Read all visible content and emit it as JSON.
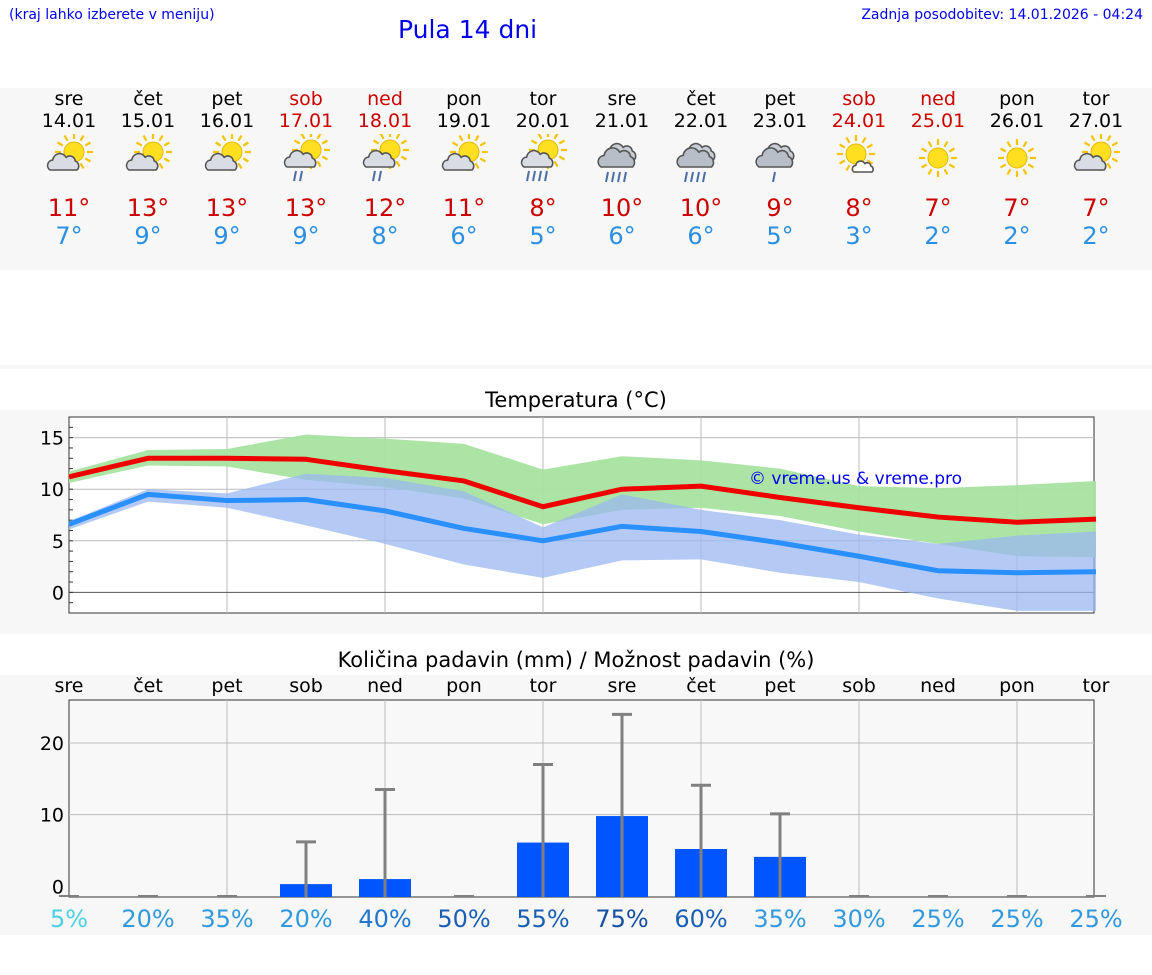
{
  "header": {
    "hint": "(kraj lahko izberete v meniju)",
    "title": "Pula 14 dni",
    "updated_label": "Zadnja posodobitev:",
    "updated_value": "14.01.2026 - 04:24"
  },
  "days": [
    {
      "name": "sre",
      "date": "14.01",
      "weekend": false,
      "icon": "partly-cloudy-icon",
      "tmax": "11°",
      "tmin": "7°"
    },
    {
      "name": "čet",
      "date": "15.01",
      "weekend": false,
      "icon": "partly-cloudy-icon",
      "tmax": "13°",
      "tmin": "9°"
    },
    {
      "name": "pet",
      "date": "16.01",
      "weekend": false,
      "icon": "partly-cloudy-icon",
      "tmax": "13°",
      "tmin": "9°"
    },
    {
      "name": "sob",
      "date": "17.01",
      "weekend": true,
      "icon": "partly-cloudy-light-rain-icon",
      "tmax": "13°",
      "tmin": "9°"
    },
    {
      "name": "ned",
      "date": "18.01",
      "weekend": true,
      "icon": "partly-cloudy-light-rain-icon",
      "tmax": "12°",
      "tmin": "8°"
    },
    {
      "name": "pon",
      "date": "19.01",
      "weekend": false,
      "icon": "partly-cloudy-icon",
      "tmax": "11°",
      "tmin": "6°"
    },
    {
      "name": "tor",
      "date": "20.01",
      "weekend": false,
      "icon": "partly-cloudy-rain-icon",
      "tmax": "8°",
      "tmin": "5°"
    },
    {
      "name": "sre",
      "date": "21.01",
      "weekend": false,
      "icon": "cloudy-rain-icon",
      "tmax": "10°",
      "tmin": "6°"
    },
    {
      "name": "čet",
      "date": "22.01",
      "weekend": false,
      "icon": "cloudy-rain-icon",
      "tmax": "10°",
      "tmin": "6°"
    },
    {
      "name": "pet",
      "date": "23.01",
      "weekend": false,
      "icon": "cloudy-light-rain-icon",
      "tmax": "9°",
      "tmin": "5°"
    },
    {
      "name": "sob",
      "date": "24.01",
      "weekend": true,
      "icon": "sun-small-cloud-icon",
      "tmax": "8°",
      "tmin": "3°"
    },
    {
      "name": "ned",
      "date": "25.01",
      "weekend": true,
      "icon": "sun-icon",
      "tmax": "7°",
      "tmin": "2°"
    },
    {
      "name": "pon",
      "date": "26.01",
      "weekend": false,
      "icon": "sun-icon",
      "tmax": "7°",
      "tmin": "2°"
    },
    {
      "name": "tor",
      "date": "27.01",
      "weekend": false,
      "icon": "partly-cloudy-icon",
      "tmax": "7°",
      "tmin": "2°"
    }
  ],
  "chart_data": [
    {
      "type": "line",
      "title": "Temperatura (°C)",
      "watermark": "© vreme.us & vreme.pro",
      "categories": [
        "14.01",
        "15.01",
        "16.01",
        "17.01",
        "18.01",
        "19.01",
        "20.01",
        "21.01",
        "22.01",
        "23.01",
        "24.01",
        "25.01",
        "26.01",
        "27.01"
      ],
      "ylim": [
        -2,
        17
      ],
      "yticks": [
        0,
        5,
        10,
        15
      ],
      "series": [
        {
          "name": "max",
          "color": "#ee0000",
          "values": [
            11.2,
            13.0,
            13.0,
            12.9,
            11.8,
            10.8,
            8.3,
            10.0,
            10.3,
            9.2,
            8.2,
            7.3,
            6.8,
            7.1
          ]
        },
        {
          "name": "min",
          "color": "#2a8fff",
          "values": [
            6.6,
            9.5,
            8.9,
            9.0,
            7.9,
            6.2,
            5.0,
            6.4,
            5.9,
            4.8,
            3.5,
            2.1,
            1.9,
            2.0
          ]
        }
      ],
      "max_band": {
        "color": "#a6e3a0",
        "upper": [
          11.7,
          13.8,
          13.9,
          15.3,
          14.9,
          14.4,
          11.9,
          13.2,
          12.8,
          12.0,
          10.3,
          10.1,
          10.4,
          10.8
        ],
        "lower": [
          10.6,
          12.3,
          12.2,
          10.9,
          10.2,
          9.1,
          6.6,
          8.0,
          8.2,
          7.4,
          5.9,
          4.7,
          3.5,
          3.4
        ]
      },
      "min_band": {
        "color": "#9bb8f0",
        "upper": [
          6.9,
          10.0,
          9.6,
          11.5,
          11.1,
          9.8,
          6.3,
          9.5,
          8.0,
          7.0,
          5.6,
          4.7,
          5.5,
          5.9
        ],
        "lower": [
          6.1,
          8.8,
          8.2,
          6.5,
          4.7,
          2.7,
          1.4,
          3.1,
          3.2,
          1.9,
          1.0,
          -0.6,
          -1.8,
          -1.8
        ]
      }
    },
    {
      "type": "bar",
      "title": "Količina padavin (mm) / Možnost padavin (%)",
      "categories": [
        "sre",
        "čet",
        "pet",
        "sob",
        "ned",
        "pon",
        "tor",
        "sre",
        "čet",
        "pet",
        "sob",
        "ned",
        "pon",
        "tor"
      ],
      "ylim": [
        -1.5,
        26
      ],
      "yticks": [
        0,
        10,
        20
      ],
      "values": [
        0,
        0,
        0,
        0.3,
        1.0,
        0,
        6.1,
        9.8,
        5.2,
        4.1,
        0,
        0,
        0,
        0
      ],
      "error_max": [
        0,
        0,
        0,
        6.2,
        13.5,
        0,
        17.0,
        24.0,
        14.1,
        10.1,
        0,
        0,
        0,
        0
      ],
      "bar_color": "#0055ff",
      "probabilities": [
        "5%",
        "20%",
        "35%",
        "20%",
        "40%",
        "50%",
        "55%",
        "75%",
        "60%",
        "35%",
        "30%",
        "25%",
        "25%",
        "25%"
      ],
      "probability_colors": [
        "#4dd0e1",
        "#3399dd",
        "#3399dd",
        "#3399dd",
        "#2277cc",
        "#1a5fb4",
        "#1a5fb4",
        "#154fa0",
        "#1a5fb4",
        "#3399dd",
        "#3399dd",
        "#3399dd",
        "#3399dd",
        "#3399dd"
      ]
    }
  ]
}
